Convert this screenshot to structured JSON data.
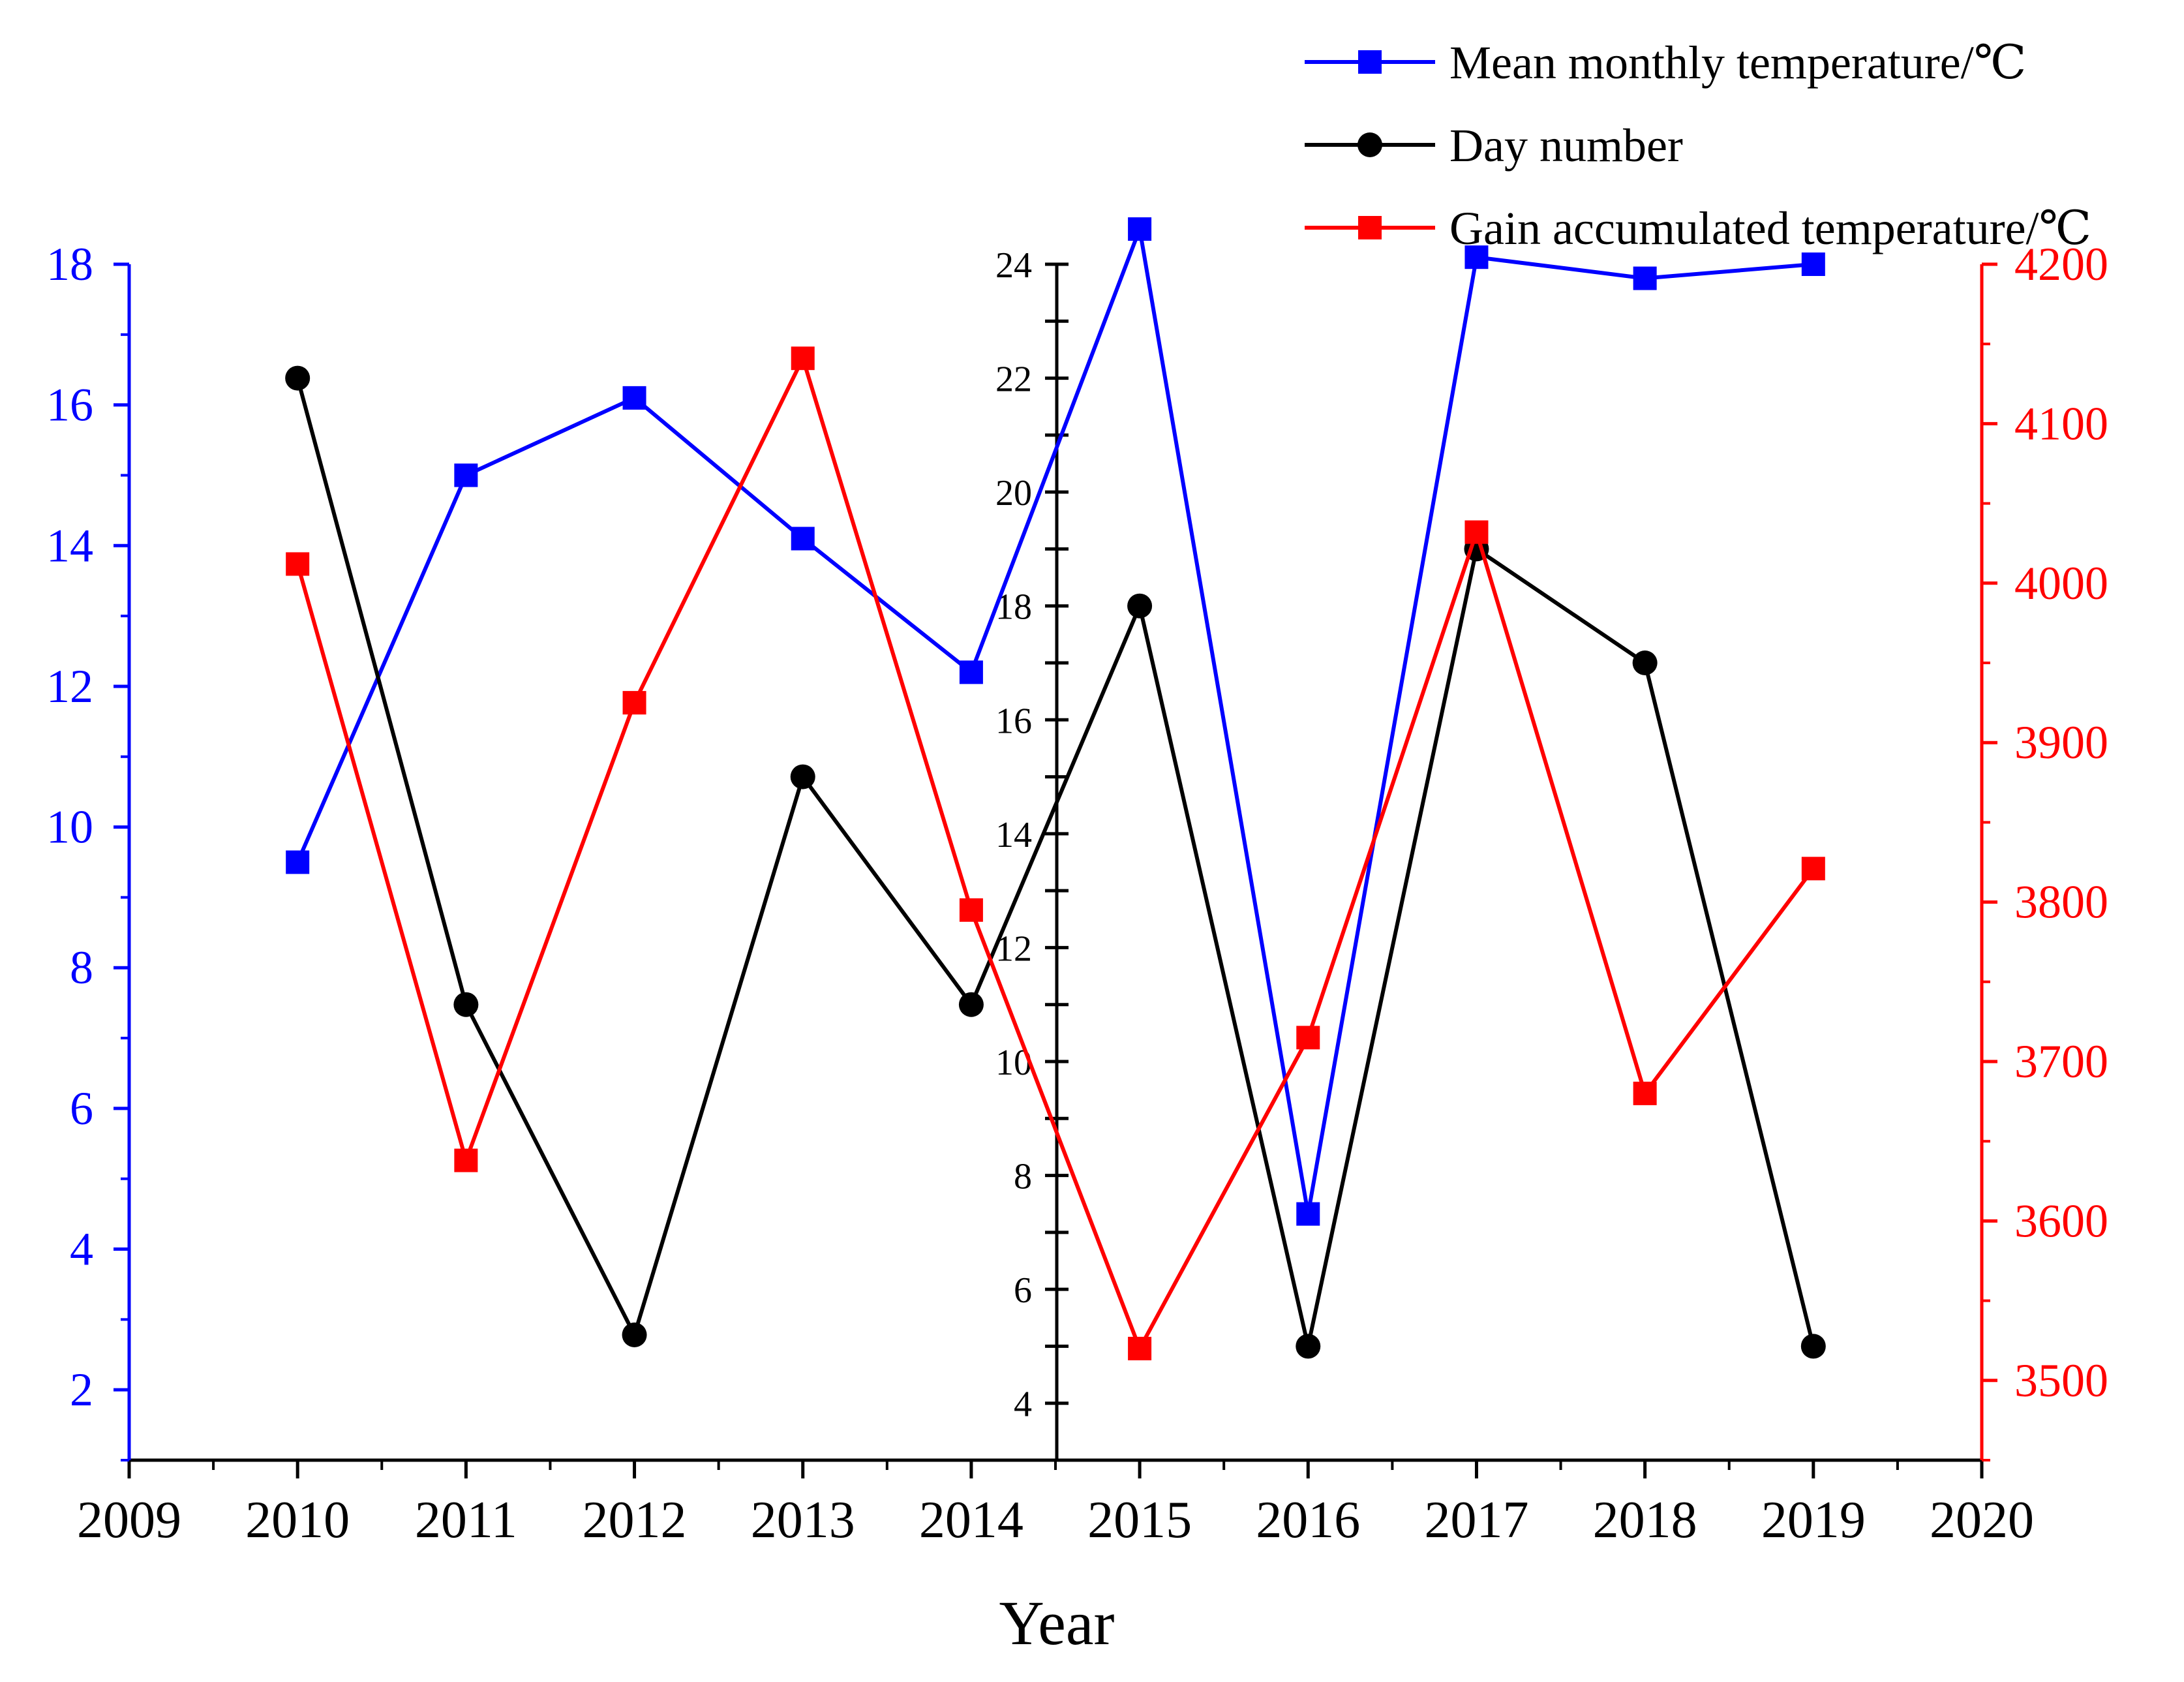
{
  "chart_data": {
    "type": "line",
    "x": [
      2010,
      2011,
      2012,
      2013,
      2014,
      2015,
      2016,
      2017,
      2018,
      2019
    ],
    "xlabel": "Year",
    "xlim": [
      2009,
      2020
    ],
    "x_ticks": [
      "2009",
      "2010",
      "2011",
      "2012",
      "2013",
      "2014",
      "2015",
      "2016",
      "2017",
      "2018",
      "2019",
      "2020"
    ],
    "axes": {
      "left": {
        "color": "#0000ff",
        "ylim": [
          1,
          18
        ],
        "ticks": [
          "2",
          "4",
          "6",
          "8",
          "10",
          "12",
          "14",
          "16",
          "18"
        ]
      },
      "middle": {
        "color": "#000000",
        "ylim": [
          3,
          24
        ],
        "ticks": [
          "4",
          "6",
          "8",
          "10",
          "12",
          "14",
          "16",
          "18",
          "20",
          "22",
          "24"
        ]
      },
      "right": {
        "color": "#ff0000",
        "ylim": [
          3450,
          4200
        ],
        "ticks": [
          "3500",
          "3600",
          "3700",
          "3800",
          "3900",
          "4000",
          "4100",
          "4200"
        ]
      }
    },
    "series": [
      {
        "name": "Mean monthly temperature/℃",
        "axis": "left",
        "color": "#0000ff",
        "marker": "square",
        "values": [
          9.5,
          15.0,
          16.1,
          14.1,
          12.2,
          18.5,
          4.5,
          18.1,
          17.8,
          18.0
        ]
      },
      {
        "name": "Day number",
        "axis": "middle",
        "color": "#000000",
        "marker": "circle",
        "values": [
          22.0,
          11.0,
          5.2,
          15.0,
          11.0,
          18.0,
          5.0,
          19.0,
          17.0,
          5.0
        ]
      },
      {
        "name": "Gain accumulated temperature/℃",
        "axis": "right",
        "color": "#ff0000",
        "marker": "square",
        "values": [
          4012,
          3638,
          3925,
          4141,
          3795,
          3520,
          3715,
          4032,
          3680,
          3821
        ]
      }
    ],
    "legend_position": "top-right",
    "grid": false
  }
}
